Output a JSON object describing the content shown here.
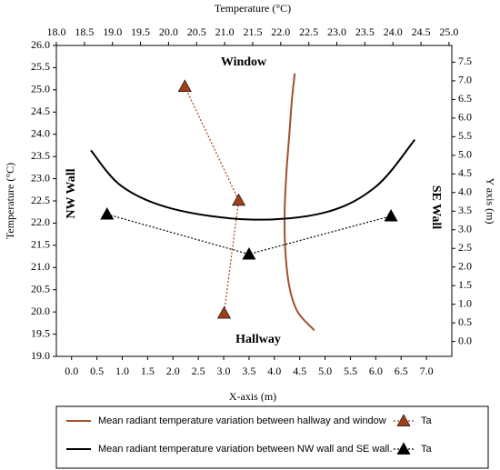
{
  "chart_data": {
    "type": "line",
    "x_label": "X-axis (m)",
    "x2_label": "Temperature (°C)",
    "y_label": "Temperature (°C)",
    "y2_label": "Y axis (m)",
    "annotations": [
      "Window",
      "Hallway",
      "NW Wall",
      "SE Wall"
    ],
    "xlim": [
      -0.3,
      7.5
    ],
    "xticks": [
      {
        "value": 0,
        "label": "0.0"
      },
      0.5,
      {
        "value": 1,
        "label": "1.0"
      },
      1.5,
      {
        "value": 2,
        "label": "2.0"
      },
      2.5,
      {
        "value": 3,
        "label": "3.0"
      },
      3.5,
      {
        "value": 4,
        "label": "4.0"
      },
      4.5,
      {
        "value": 5,
        "label": "5.0"
      },
      5.5,
      {
        "value": 6,
        "label": "6.0"
      },
      6.5,
      {
        "value": 7,
        "label": "7.0"
      }
    ],
    "x2lim": [
      18,
      25.05
    ],
    "x2ticks": [
      {
        "value": 18,
        "label": "18.0"
      },
      18.5,
      {
        "value": 19,
        "label": "19.0"
      },
      19.5,
      {
        "value": 20,
        "label": "20.0"
      },
      20.5,
      {
        "value": 21,
        "label": "21.0"
      },
      21.5,
      {
        "value": 22,
        "label": "22.0"
      },
      22.5,
      {
        "value": 23,
        "label": "23.0"
      },
      23.5,
      {
        "value": 24,
        "label": "24.0"
      },
      24.5,
      {
        "value": 25,
        "label": "25.0"
      }
    ],
    "ylim": [
      19,
      26
    ],
    "yticks": [
      {
        "value": 19,
        "label": "19.0"
      },
      19.5,
      {
        "value": 20,
        "label": "20.0"
      },
      20.5,
      {
        "value": 21,
        "label": "21.0"
      },
      21.5,
      {
        "value": 22,
        "label": "22.0"
      },
      22.5,
      {
        "value": 23,
        "label": "23.0"
      },
      23.5,
      {
        "value": 24,
        "label": "24.0"
      },
      24.5,
      {
        "value": 25,
        "label": "25.0"
      },
      25.5,
      {
        "value": 26,
        "label": "26.0"
      }
    ],
    "y2lim": [
      -0.4,
      7.95
    ],
    "y2ticks": [
      {
        "value": 0,
        "label": "0.0"
      },
      0.5,
      {
        "value": 1,
        "label": "1.0"
      },
      1.5,
      {
        "value": 2,
        "label": "2.0"
      },
      2.5,
      {
        "value": 3,
        "label": "3.0"
      },
      3.5,
      {
        "value": 4,
        "label": "4.0"
      },
      4.5,
      {
        "value": 5,
        "label": "5.0"
      },
      5.5,
      {
        "value": 6,
        "label": "6.0"
      },
      6.5,
      {
        "value": 7,
        "label": "7.0"
      },
      7.5
    ],
    "series": [
      {
        "name": "Mean radiant temperature variation between hallway and window",
        "color": "#a0522d",
        "xaxis": "x2",
        "axis": "y2",
        "linestyle": "solid",
        "marker": "none",
        "x": [
          22.6,
          22.3,
          22.15,
          22.08,
          22.07,
          22.1,
          22.15,
          22.2,
          22.25
        ],
        "values": [
          0.3,
          0.8,
          1.5,
          2.5,
          3.5,
          4.5,
          5.5,
          6.5,
          7.2
        ]
      },
      {
        "name": "Ta",
        "color": "#a0401a",
        "xaxis": "x2",
        "axis": "y2",
        "linestyle": "dotted",
        "marker": "triangle",
        "x": [
          20.29,
          21.25,
          20.99
        ],
        "values": [
          6.85,
          3.79,
          0.76
        ]
      },
      {
        "name": "Mean radiant temperature variation between NW wall and SE wall.",
        "color": "#000000",
        "linestyle": "solid",
        "marker": "none",
        "x": [
          0.38,
          1.0,
          2.0,
          3.54,
          5.0,
          6.0,
          6.77
        ],
        "values": [
          23.64,
          22.82,
          22.32,
          22.08,
          22.24,
          22.82,
          23.88
        ]
      },
      {
        "name": "Ta",
        "color": "#000000",
        "linestyle": "dotted",
        "marker": "triangle",
        "x": [
          0.7,
          3.5,
          6.3
        ],
        "values": [
          22.2,
          21.3,
          22.16
        ]
      }
    ]
  }
}
